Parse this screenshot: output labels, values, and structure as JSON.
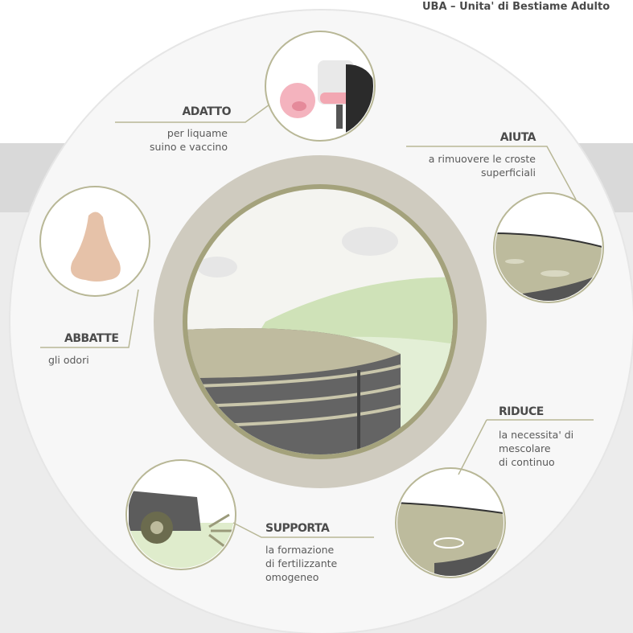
{
  "header": {
    "title": "UBA – Unita' di Bestiame Adulto"
  },
  "items": [
    {
      "title": "ADATTO",
      "lines": [
        "per liquame",
        "suino e vaccino"
      ]
    },
    {
      "title": "AIUTA",
      "lines": [
        "a rimuovere le croste",
        "superficiali"
      ]
    },
    {
      "title": "ABBATTE",
      "lines": [
        "gli odori"
      ]
    },
    {
      "title": "RIDUCE",
      "lines": [
        "la necessita' di",
        "mescolare",
        "di continuo"
      ]
    },
    {
      "title": "SUPPORTA",
      "lines": [
        "la formazione",
        "di fertilizzante",
        "omogeneo"
      ]
    }
  ]
}
